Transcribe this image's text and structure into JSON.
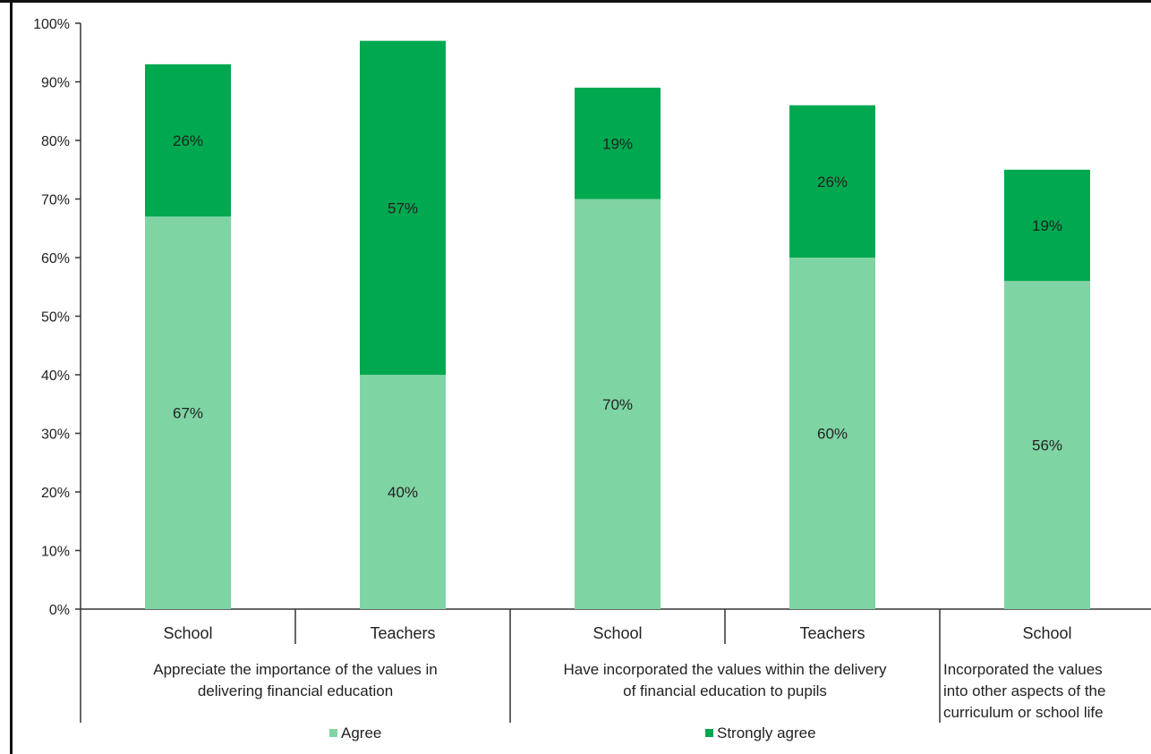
{
  "chart_data": {
    "type": "bar",
    "stacked": true,
    "categories": [
      "School",
      "Teachers",
      "School",
      "Teachers",
      "School"
    ],
    "groups": [
      {
        "lines": [
          "Appreciate the importance of the values in",
          "delivering financial education"
        ],
        "span": [
          0,
          1
        ]
      },
      {
        "lines": [
          "Have incorporated the values within the delivery",
          "of financial education to pupils"
        ],
        "span": [
          2,
          3
        ]
      },
      {
        "lines": [
          "Incorporated the values",
          "into other aspects of the",
          "curriculum or school life"
        ],
        "span": [
          4,
          4
        ]
      }
    ],
    "series": [
      {
        "name": "Agree",
        "values": [
          67,
          40,
          70,
          60,
          56
        ],
        "labels": [
          "67%",
          "40%",
          "70%",
          "60%",
          "56%"
        ],
        "color": "#7fd4a4"
      },
      {
        "name": "Strongly agree",
        "values": [
          26,
          57,
          19,
          26,
          19
        ],
        "labels": [
          "26%",
          "57%",
          "19%",
          "26%",
          "19%"
        ],
        "color": "#00a84f"
      }
    ],
    "ylim": [
      0,
      100
    ],
    "yticks": [
      "0%",
      "10%",
      "20%",
      "30%",
      "40%",
      "50%",
      "60%",
      "70%",
      "80%",
      "90%",
      "100%"
    ],
    "grid": false,
    "legend_position": "bottom"
  }
}
